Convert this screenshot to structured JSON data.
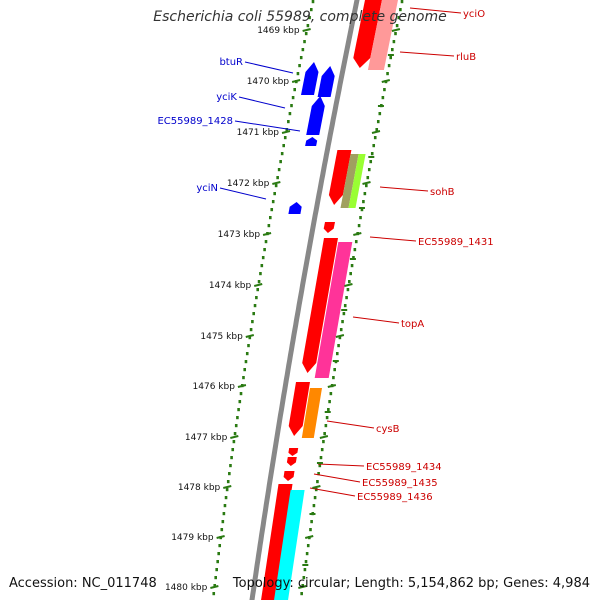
{
  "title": "Escherichia coli 55989, complete genome",
  "footer": {
    "accession": "Accession: NC_011748",
    "summary": "Topology: circular; Length: 5,154,862 bp; Genes: 4,984"
  },
  "ticks": [
    {
      "label": "1469 kbp",
      "kbp": 1469
    },
    {
      "label": "1470 kbp",
      "kbp": 1470
    },
    {
      "label": "1471 kbp",
      "kbp": 1471
    },
    {
      "label": "1472 kbp",
      "kbp": 1472
    },
    {
      "label": "1473 kbp",
      "kbp": 1473
    },
    {
      "label": "1474 kbp",
      "kbp": 1474
    },
    {
      "label": "1475 kbp",
      "kbp": 1475
    },
    {
      "label": "1476 kbp",
      "kbp": 1476
    },
    {
      "label": "1477 kbp",
      "kbp": 1477
    },
    {
      "label": "1478 kbp",
      "kbp": 1478
    },
    {
      "label": "1479 kbp",
      "kbp": 1479
    },
    {
      "label": "1480 kbp",
      "kbp": 1480
    }
  ],
  "genes_left": [
    {
      "name": "btuR",
      "color": "#0000cc"
    },
    {
      "name": "yciK",
      "color": "#0000cc"
    },
    {
      "name": "EC55989_1428",
      "color": "#0000cc"
    },
    {
      "name": "yciN",
      "color": "#0000cc"
    }
  ],
  "genes_right": [
    {
      "name": "yciO",
      "color": "#cc0000"
    },
    {
      "name": "rluB",
      "color": "#cc0000"
    },
    {
      "name": "sohB",
      "color": "#cc0000"
    },
    {
      "name": "EC55989_1431",
      "color": "#cc0000"
    },
    {
      "name": "topA",
      "color": "#cc0000"
    },
    {
      "name": "cysB",
      "color": "#cc0000"
    },
    {
      "name": "EC55989_1434",
      "color": "#cc0000"
    },
    {
      "name": "EC55989_1435",
      "color": "#cc0000"
    },
    {
      "name": "EC55989_1436",
      "color": "#cc0000"
    }
  ],
  "colors": {
    "backbone": "#888888",
    "tick": "#2a7a12",
    "forward": "#ff0000",
    "reverse": "#0000ff",
    "pink": "#ff3399",
    "salmon": "#ff9999",
    "olive": "#a0a060",
    "lime": "#99ff33",
    "orange": "#ff8800",
    "cyan": "#00ffff"
  }
}
